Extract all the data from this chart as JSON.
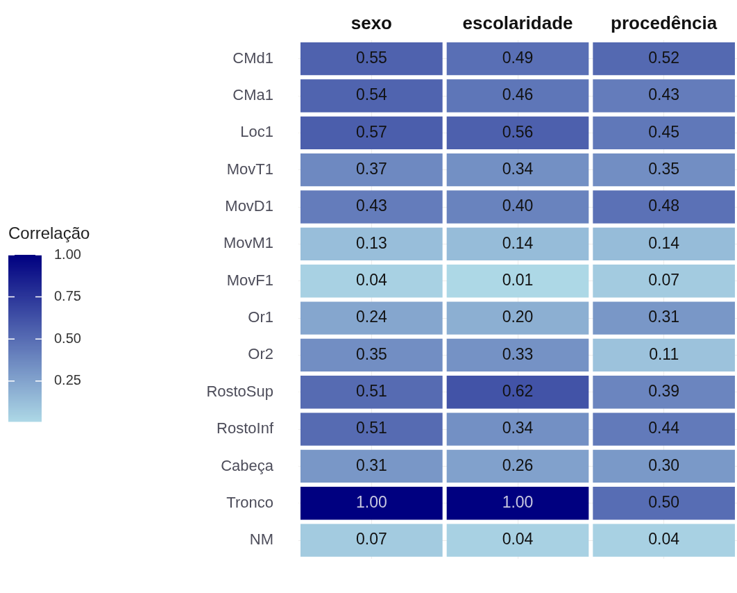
{
  "chart_data": {
    "type": "heatmap",
    "clabel": "Correlação",
    "categories": [
      "sexo",
      "escolaridade",
      "procedência"
    ],
    "y_categories": [
      "CMd1",
      "CMa1",
      "Loc1",
      "MovT1",
      "MovD1",
      "MovM1",
      "MovF1",
      "Or1",
      "Or2",
      "RostoSup",
      "RostoInf",
      "Cabeça",
      "Tronco",
      "NM"
    ],
    "cells": [
      [
        0.55,
        0.49,
        0.52
      ],
      [
        0.54,
        0.46,
        0.43
      ],
      [
        0.57,
        0.56,
        0.45
      ],
      [
        0.37,
        0.34,
        0.35
      ],
      [
        0.43,
        0.4,
        0.48
      ],
      [
        0.13,
        0.14,
        0.14
      ],
      [
        0.04,
        0.01,
        0.07
      ],
      [
        0.24,
        0.2,
        0.31
      ],
      [
        0.35,
        0.33,
        0.11
      ],
      [
        0.51,
        0.62,
        0.39
      ],
      [
        0.51,
        0.34,
        0.44
      ],
      [
        0.31,
        0.26,
        0.3
      ],
      [
        1.0,
        1.0,
        0.5
      ],
      [
        0.07,
        0.04,
        0.04
      ]
    ],
    "cell_labels": [
      [
        "0.55",
        "0.49",
        "0.52"
      ],
      [
        "0.54",
        "0.46",
        "0.43"
      ],
      [
        "0.57",
        "0.56",
        "0.45"
      ],
      [
        "0.37",
        "0.34",
        "0.35"
      ],
      [
        "0.43",
        "0.40",
        "0.48"
      ],
      [
        "0.13",
        "0.14",
        "0.14"
      ],
      [
        "0.04",
        "0.01",
        "0.07"
      ],
      [
        "0.24",
        "0.20",
        "0.31"
      ],
      [
        "0.35",
        "0.33",
        "0.11"
      ],
      [
        "0.51",
        "0.62",
        "0.39"
      ],
      [
        "0.51",
        "0.34",
        "0.44"
      ],
      [
        "0.31",
        "0.26",
        "0.30"
      ],
      [
        "1.00",
        "1.00",
        "0.50"
      ],
      [
        "0.07",
        "0.04",
        "0.04"
      ]
    ],
    "colors": [
      "#add8e6",
      "#000080"
    ],
    "clim": [
      0.01,
      1.0
    ],
    "cticks": [
      {
        "value": 0.25,
        "label": "0.25"
      },
      {
        "value": 0.5,
        "label": "0.50"
      },
      {
        "value": 0.75,
        "label": "0.75"
      },
      {
        "value": 1.0,
        "label": "1.00"
      }
    ],
    "grid": true
  }
}
